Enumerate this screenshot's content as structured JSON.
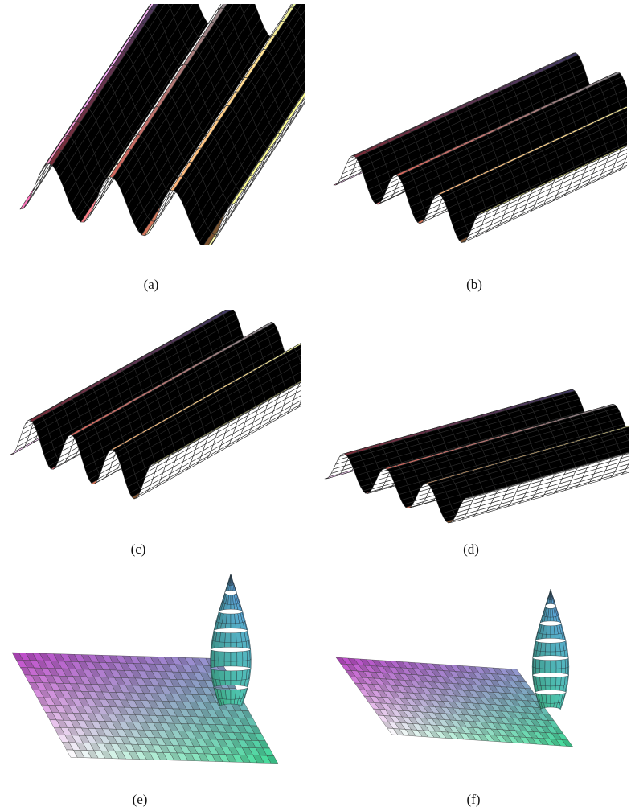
{
  "figure": {
    "panels": [
      {
        "label": "(a)",
        "kind": "wave"
      },
      {
        "label": "(b)",
        "kind": "wave"
      },
      {
        "label": "(c)",
        "kind": "wave"
      },
      {
        "label": "(d)",
        "kind": "wave"
      },
      {
        "label": "(e)",
        "kind": "spike"
      },
      {
        "label": "(f)",
        "kind": "spike"
      }
    ]
  }
}
